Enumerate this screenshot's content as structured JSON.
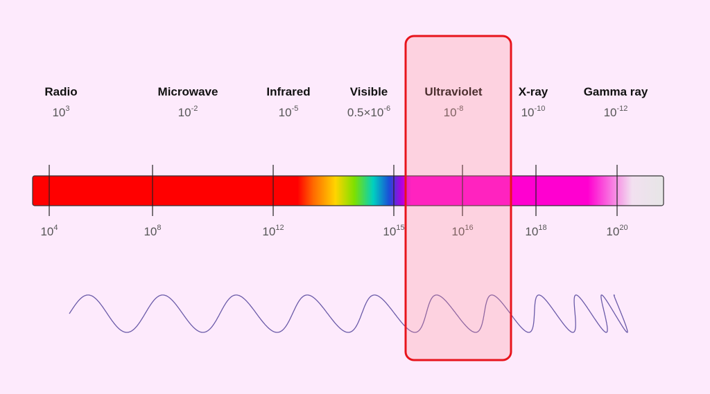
{
  "bands": [
    {
      "name": "Radio",
      "wavelength": {
        "base": "10",
        "exponent": "3"
      }
    },
    {
      "name": "Microwave",
      "wavelength": {
        "base": "10",
        "exponent": "-2"
      }
    },
    {
      "name": "Infrared",
      "wavelength": {
        "base": "10",
        "exponent": "-5"
      }
    },
    {
      "name": "Visible",
      "wavelength": {
        "base": "0.5×10",
        "exponent": "-6"
      }
    },
    {
      "name": "Ultraviolet",
      "wavelength": {
        "base": "10",
        "exponent": "-8"
      }
    },
    {
      "name": "X-ray",
      "wavelength": {
        "base": "10",
        "exponent": "-10"
      }
    },
    {
      "name": "Gamma ray",
      "wavelength": {
        "base": "10",
        "exponent": "-12"
      }
    }
  ],
  "frequencies": [
    {
      "base": "10",
      "exponent": "4"
    },
    {
      "base": "10",
      "exponent": "8"
    },
    {
      "base": "10",
      "exponent": "12"
    },
    {
      "base": "10",
      "exponent": "15"
    },
    {
      "base": "10",
      "exponent": "16"
    },
    {
      "base": "10",
      "exponent": "18"
    },
    {
      "base": "10",
      "exponent": "20"
    }
  ]
}
